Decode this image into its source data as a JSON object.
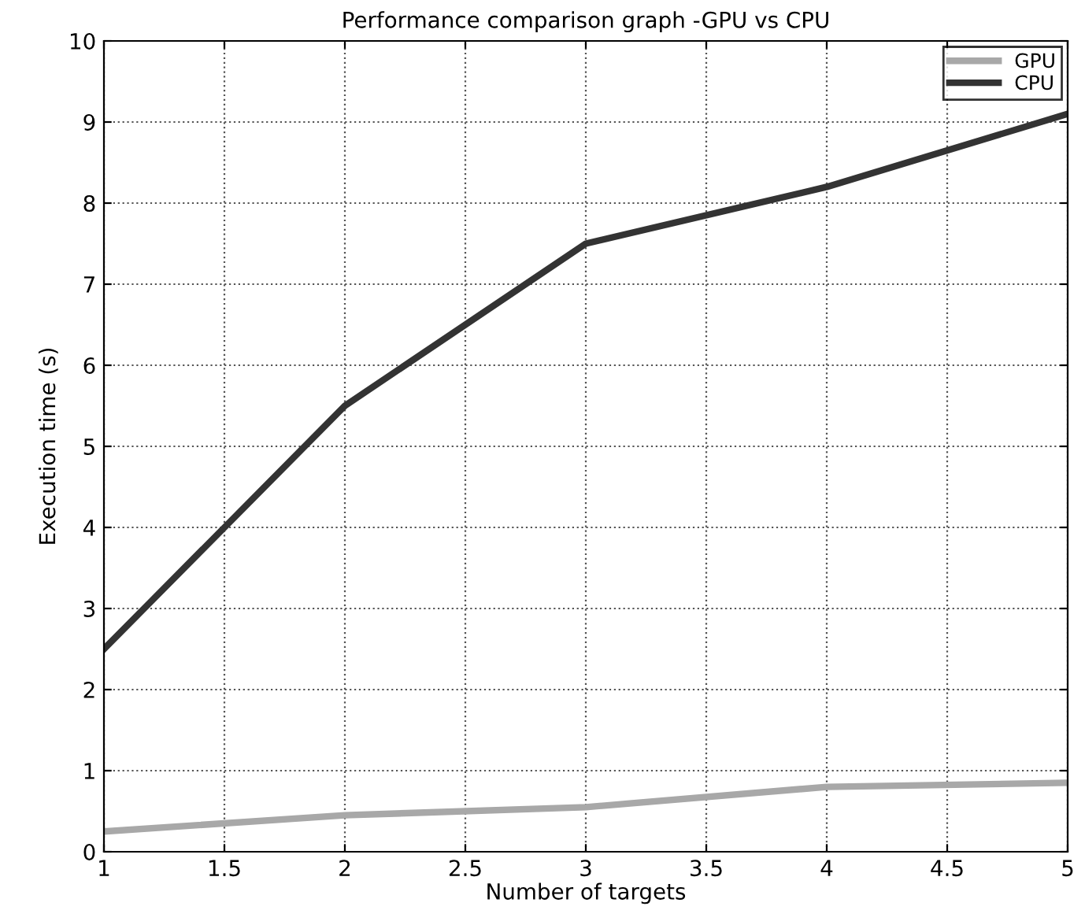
{
  "chart_data": {
    "type": "line",
    "title": "Performance comparison graph -GPU vs CPU",
    "xlabel": "Number of targets",
    "ylabel": "Execution time (s)",
    "x": [
      1,
      2,
      3,
      4,
      5
    ],
    "series": [
      {
        "name": "GPU",
        "color": "#a8a8a8",
        "values": [
          0.25,
          0.45,
          0.55,
          0.8,
          0.85
        ]
      },
      {
        "name": "CPU",
        "color": "#333333",
        "values": [
          2.5,
          5.5,
          7.5,
          8.2,
          9.1
        ]
      }
    ],
    "xlim": [
      1,
      5
    ],
    "xticks": [
      1,
      1.5,
      2,
      2.5,
      3,
      3.5,
      4,
      4.5,
      5
    ],
    "ylim": [
      0,
      10
    ],
    "yticks": [
      0,
      1,
      2,
      3,
      4,
      5,
      6,
      7,
      8,
      9,
      10
    ],
    "grid": true,
    "legend": "top right",
    "marker": "none",
    "line_style": "solid"
  }
}
